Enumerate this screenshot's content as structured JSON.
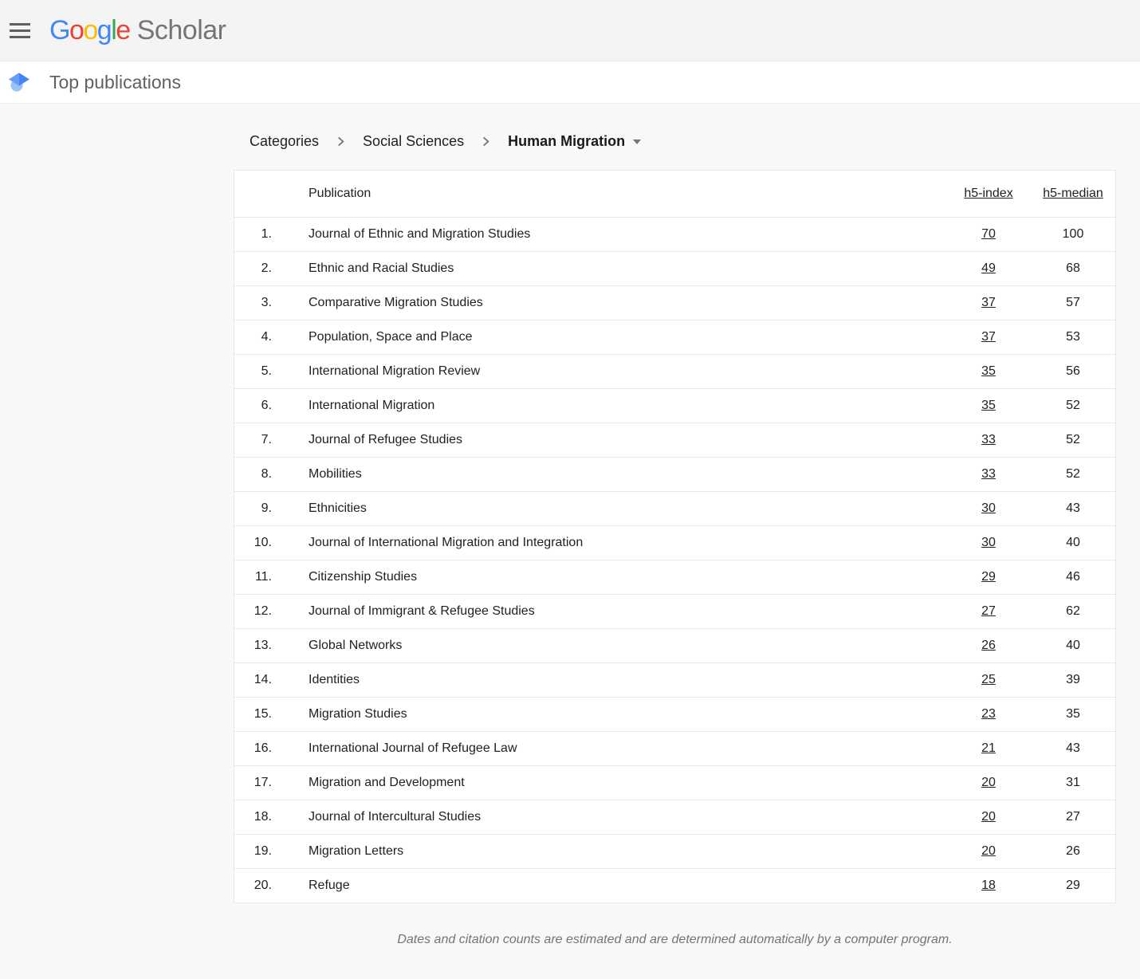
{
  "header": {
    "logo_letters": [
      {
        "ch": "G",
        "color": "#4285F4"
      },
      {
        "ch": "o",
        "color": "#EA4335"
      },
      {
        "ch": "o",
        "color": "#FBBC05"
      },
      {
        "ch": "g",
        "color": "#4285F4"
      },
      {
        "ch": "l",
        "color": "#34A853"
      },
      {
        "ch": "e",
        "color": "#EA4335"
      }
    ],
    "logo_scholar": "Scholar"
  },
  "subheader": {
    "title": "Top publications"
  },
  "breadcrumb": {
    "categories": "Categories",
    "social_sciences": "Social Sciences",
    "current": "Human Migration"
  },
  "table": {
    "columns": {
      "publication": "Publication",
      "h5_index": "h5-index",
      "h5_median": "h5-median"
    },
    "rows": [
      {
        "rank": "1.",
        "publication": "Journal of Ethnic and Migration Studies",
        "h5_index": "70",
        "h5_median": "100"
      },
      {
        "rank": "2.",
        "publication": "Ethnic and Racial Studies",
        "h5_index": "49",
        "h5_median": "68"
      },
      {
        "rank": "3.",
        "publication": "Comparative Migration Studies",
        "h5_index": "37",
        "h5_median": "57"
      },
      {
        "rank": "4.",
        "publication": "Population, Space and Place",
        "h5_index": "37",
        "h5_median": "53"
      },
      {
        "rank": "5.",
        "publication": "International Migration Review",
        "h5_index": "35",
        "h5_median": "56"
      },
      {
        "rank": "6.",
        "publication": "International Migration",
        "h5_index": "35",
        "h5_median": "52"
      },
      {
        "rank": "7.",
        "publication": "Journal of Refugee Studies",
        "h5_index": "33",
        "h5_median": "52"
      },
      {
        "rank": "8.",
        "publication": "Mobilities",
        "h5_index": "33",
        "h5_median": "52"
      },
      {
        "rank": "9.",
        "publication": "Ethnicities",
        "h5_index": "30",
        "h5_median": "43"
      },
      {
        "rank": "10.",
        "publication": "Journal of International Migration and Integration",
        "h5_index": "30",
        "h5_median": "40"
      },
      {
        "rank": "11.",
        "publication": "Citizenship Studies",
        "h5_index": "29",
        "h5_median": "46"
      },
      {
        "rank": "12.",
        "publication": "Journal of Immigrant & Refugee Studies",
        "h5_index": "27",
        "h5_median": "62"
      },
      {
        "rank": "13.",
        "publication": "Global Networks",
        "h5_index": "26",
        "h5_median": "40"
      },
      {
        "rank": "14.",
        "publication": "Identities",
        "h5_index": "25",
        "h5_median": "39"
      },
      {
        "rank": "15.",
        "publication": "Migration Studies",
        "h5_index": "23",
        "h5_median": "35"
      },
      {
        "rank": "16.",
        "publication": "International Journal of Refugee Law",
        "h5_index": "21",
        "h5_median": "43"
      },
      {
        "rank": "17.",
        "publication": "Migration and Development",
        "h5_index": "20",
        "h5_median": "31"
      },
      {
        "rank": "18.",
        "publication": "Journal of Intercultural Studies",
        "h5_index": "20",
        "h5_median": "27"
      },
      {
        "rank": "19.",
        "publication": "Migration Letters",
        "h5_index": "20",
        "h5_median": "26"
      },
      {
        "rank": "20.",
        "publication": "Refuge",
        "h5_index": "18",
        "h5_median": "29"
      }
    ]
  },
  "footer": {
    "note": "Dates and citation counts are estimated and are determined automatically by a computer program."
  },
  "colors": {
    "accent_blue": "#4285F4",
    "cap_dark_blue": "#4285F4",
    "cap_light_blue": "#669DF6",
    "cap_head_blue": "#9BC2F9",
    "header_bg": "#f4f4f4",
    "page_bg": "#f8f8f8",
    "card_bg": "#ffffff",
    "border": "#e8e8e8",
    "text": "#212121",
    "muted_gray": "#757575",
    "note_gray": "#70757a"
  }
}
